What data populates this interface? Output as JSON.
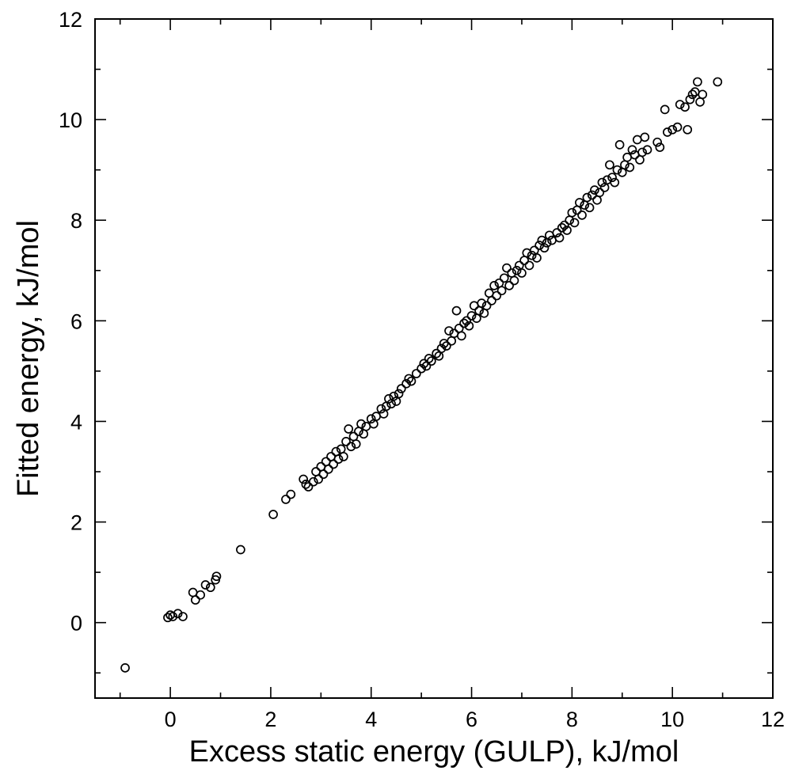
{
  "chart_data": {
    "type": "scatter",
    "title": "",
    "xlabel": "Excess static energy (GULP), kJ/mol",
    "ylabel": "Fitted energy, kJ/mol",
    "xlim": [
      -1.5,
      12
    ],
    "ylim": [
      -1.5,
      12
    ],
    "x_ticks": [
      0,
      2,
      4,
      6,
      8,
      10,
      12
    ],
    "y_ticks": [
      0,
      2,
      4,
      6,
      8,
      10,
      12
    ],
    "grid": false,
    "legend": "none",
    "marker": "open circle",
    "color": "#000000",
    "points": [
      [
        -0.9,
        -0.9
      ],
      [
        -0.05,
        0.1
      ],
      [
        0.0,
        0.15
      ],
      [
        0.05,
        0.12
      ],
      [
        0.15,
        0.18
      ],
      [
        0.25,
        0.12
      ],
      [
        0.45,
        0.6
      ],
      [
        0.5,
        0.45
      ],
      [
        0.6,
        0.55
      ],
      [
        0.7,
        0.75
      ],
      [
        0.8,
        0.7
      ],
      [
        0.9,
        0.85
      ],
      [
        0.92,
        0.92
      ],
      [
        1.4,
        1.45
      ],
      [
        2.05,
        2.15
      ],
      [
        2.3,
        2.45
      ],
      [
        2.4,
        2.55
      ],
      [
        2.65,
        2.85
      ],
      [
        2.7,
        2.75
      ],
      [
        2.75,
        2.7
      ],
      [
        2.85,
        2.8
      ],
      [
        2.9,
        3.0
      ],
      [
        2.95,
        2.85
      ],
      [
        3.0,
        3.1
      ],
      [
        3.05,
        2.95
      ],
      [
        3.1,
        3.2
      ],
      [
        3.15,
        3.05
      ],
      [
        3.2,
        3.3
      ],
      [
        3.25,
        3.15
      ],
      [
        3.3,
        3.4
      ],
      [
        3.35,
        3.25
      ],
      [
        3.4,
        3.45
      ],
      [
        3.45,
        3.3
      ],
      [
        3.5,
        3.6
      ],
      [
        3.55,
        3.85
      ],
      [
        3.6,
        3.5
      ],
      [
        3.65,
        3.7
      ],
      [
        3.7,
        3.55
      ],
      [
        3.75,
        3.8
      ],
      [
        3.8,
        3.95
      ],
      [
        3.85,
        3.75
      ],
      [
        3.9,
        3.9
      ],
      [
        4.0,
        4.05
      ],
      [
        4.05,
        3.95
      ],
      [
        4.1,
        4.1
      ],
      [
        4.2,
        4.25
      ],
      [
        4.25,
        4.15
      ],
      [
        4.3,
        4.3
      ],
      [
        4.35,
        4.45
      ],
      [
        4.4,
        4.35
      ],
      [
        4.45,
        4.5
      ],
      [
        4.5,
        4.4
      ],
      [
        4.55,
        4.55
      ],
      [
        4.6,
        4.65
      ],
      [
        4.7,
        4.75
      ],
      [
        4.75,
        4.85
      ],
      [
        4.8,
        4.8
      ],
      [
        4.9,
        4.95
      ],
      [
        5.0,
        5.05
      ],
      [
        5.05,
        5.15
      ],
      [
        5.1,
        5.1
      ],
      [
        5.15,
        5.25
      ],
      [
        5.2,
        5.2
      ],
      [
        5.3,
        5.35
      ],
      [
        5.35,
        5.3
      ],
      [
        5.4,
        5.45
      ],
      [
        5.45,
        5.55
      ],
      [
        5.5,
        5.5
      ],
      [
        5.55,
        5.8
      ],
      [
        5.6,
        5.6
      ],
      [
        5.65,
        5.75
      ],
      [
        5.7,
        6.2
      ],
      [
        5.75,
        5.85
      ],
      [
        5.8,
        5.7
      ],
      [
        5.85,
        5.95
      ],
      [
        5.9,
        6.0
      ],
      [
        5.95,
        5.9
      ],
      [
        6.0,
        6.1
      ],
      [
        6.05,
        6.3
      ],
      [
        6.1,
        6.05
      ],
      [
        6.15,
        6.2
      ],
      [
        6.2,
        6.35
      ],
      [
        6.25,
        6.15
      ],
      [
        6.3,
        6.3
      ],
      [
        6.35,
        6.55
      ],
      [
        6.4,
        6.4
      ],
      [
        6.45,
        6.7
      ],
      [
        6.5,
        6.5
      ],
      [
        6.55,
        6.75
      ],
      [
        6.6,
        6.6
      ],
      [
        6.65,
        6.85
      ],
      [
        6.7,
        7.05
      ],
      [
        6.75,
        6.7
      ],
      [
        6.8,
        6.95
      ],
      [
        6.85,
        6.8
      ],
      [
        6.9,
        7.0
      ],
      [
        6.95,
        7.1
      ],
      [
        7.0,
        6.95
      ],
      [
        7.05,
        7.2
      ],
      [
        7.1,
        7.35
      ],
      [
        7.15,
        7.1
      ],
      [
        7.2,
        7.3
      ],
      [
        7.25,
        7.4
      ],
      [
        7.3,
        7.25
      ],
      [
        7.35,
        7.5
      ],
      [
        7.4,
        7.6
      ],
      [
        7.45,
        7.45
      ],
      [
        7.5,
        7.55
      ],
      [
        7.55,
        7.7
      ],
      [
        7.6,
        7.6
      ],
      [
        7.7,
        7.75
      ],
      [
        7.75,
        7.65
      ],
      [
        7.8,
        7.85
      ],
      [
        7.85,
        7.9
      ],
      [
        7.9,
        7.8
      ],
      [
        7.95,
        8.0
      ],
      [
        8.0,
        8.15
      ],
      [
        8.05,
        7.95
      ],
      [
        8.1,
        8.2
      ],
      [
        8.15,
        8.35
      ],
      [
        8.2,
        8.1
      ],
      [
        8.25,
        8.3
      ],
      [
        8.3,
        8.45
      ],
      [
        8.35,
        8.25
      ],
      [
        8.4,
        8.5
      ],
      [
        8.45,
        8.6
      ],
      [
        8.5,
        8.4
      ],
      [
        8.55,
        8.55
      ],
      [
        8.6,
        8.75
      ],
      [
        8.65,
        8.65
      ],
      [
        8.7,
        8.8
      ],
      [
        8.75,
        9.1
      ],
      [
        8.8,
        8.85
      ],
      [
        8.85,
        8.75
      ],
      [
        8.9,
        9.0
      ],
      [
        8.95,
        9.5
      ],
      [
        9.0,
        8.95
      ],
      [
        9.05,
        9.1
      ],
      [
        9.1,
        9.25
      ],
      [
        9.15,
        9.05
      ],
      [
        9.2,
        9.4
      ],
      [
        9.25,
        9.3
      ],
      [
        9.3,
        9.6
      ],
      [
        9.35,
        9.2
      ],
      [
        9.4,
        9.35
      ],
      [
        9.45,
        9.65
      ],
      [
        9.5,
        9.4
      ],
      [
        9.7,
        9.55
      ],
      [
        9.75,
        9.45
      ],
      [
        9.85,
        10.2
      ],
      [
        9.9,
        9.75
      ],
      [
        10.0,
        9.8
      ],
      [
        10.1,
        9.85
      ],
      [
        10.15,
        10.3
      ],
      [
        10.25,
        10.25
      ],
      [
        10.3,
        9.8
      ],
      [
        10.35,
        10.4
      ],
      [
        10.4,
        10.5
      ],
      [
        10.45,
        10.55
      ],
      [
        10.5,
        10.75
      ],
      [
        10.55,
        10.35
      ],
      [
        10.6,
        10.5
      ],
      [
        10.9,
        10.75
      ]
    ]
  }
}
